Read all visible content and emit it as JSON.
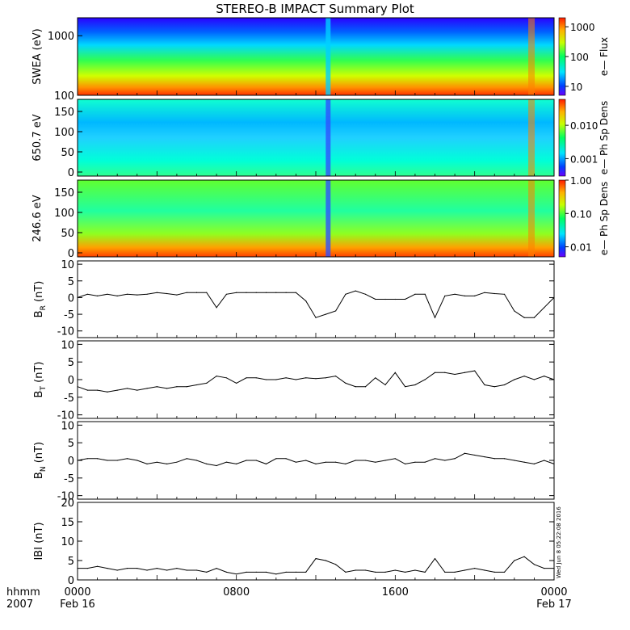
{
  "title": "STEREO-B IMPACT Summary Plot",
  "stamp": "Wed Jun  8 05:22:08 2016",
  "time_axis": {
    "range_hours": [
      0,
      24
    ],
    "ticks": [
      {
        "hour": 0,
        "line1": "0000",
        "line2": "Feb 16"
      },
      {
        "hour": 8,
        "line1": "0800",
        "line2": ""
      },
      {
        "hour": 16,
        "line1": "1600",
        "line2": ""
      },
      {
        "hour": 24,
        "line1": "0000",
        "line2": "Feb 17"
      }
    ],
    "corner_line1": "hhmm",
    "corner_line2": "2007"
  },
  "spectrograms": [
    {
      "ylabel": "SWEA (eV)",
      "yscale": "log",
      "ylim": [
        100,
        2000
      ],
      "yticks": [
        {
          "value": 100,
          "label": "100"
        },
        {
          "value": 1000,
          "label": "1000"
        }
      ],
      "colorbar_label": "e— Flux",
      "colorbar_scale": "log",
      "colorbar_range": [
        5,
        2000
      ],
      "colorbar_ticks": [
        {
          "value": 10,
          "label": "10"
        },
        {
          "value": 100,
          "label": "100"
        },
        {
          "value": 1000,
          "label": "1000"
        }
      ]
    },
    {
      "ylabel": "650.7 eV",
      "yscale": "linear",
      "ylim": [
        -10,
        180
      ],
      "yticks": [
        {
          "value": 0,
          "label": "0"
        },
        {
          "value": 50,
          "label": "50"
        },
        {
          "value": 100,
          "label": "100"
        },
        {
          "value": 150,
          "label": "150"
        }
      ],
      "colorbar_label": "e— Ph Sp Dens",
      "colorbar_scale": "log",
      "colorbar_range": [
        0.0003,
        0.06
      ],
      "colorbar_ticks": [
        {
          "value": 0.001,
          "label": "0.001"
        },
        {
          "value": 0.01,
          "label": "0.010"
        }
      ]
    },
    {
      "ylabel": "246.6 eV",
      "yscale": "linear",
      "ylim": [
        -10,
        180
      ],
      "yticks": [
        {
          "value": 0,
          "label": "0"
        },
        {
          "value": 50,
          "label": "50"
        },
        {
          "value": 100,
          "label": "100"
        },
        {
          "value": 150,
          "label": "150"
        }
      ],
      "colorbar_label": "e— Ph Sp Dens",
      "colorbar_scale": "log",
      "colorbar_range": [
        0.005,
        1.0
      ],
      "colorbar_ticks": [
        {
          "value": 0.01,
          "label": "0.01"
        },
        {
          "value": 0.1,
          "label": "0.10"
        },
        {
          "value": 1.0,
          "label": "1.00"
        }
      ]
    }
  ],
  "chart_data": [
    {
      "type": "line",
      "ylabel_main": "B",
      "ylabel_sub": "R",
      "ylabel_unit": " (nT)",
      "ylim": [
        -12,
        11
      ],
      "yticks": [
        -10,
        -5,
        0,
        5,
        10
      ],
      "x": [
        0,
        0.5,
        1,
        1.5,
        2,
        2.5,
        3,
        3.5,
        4,
        4.5,
        5,
        5.5,
        6,
        6.5,
        7,
        7.5,
        8,
        8.5,
        9,
        9.5,
        10,
        10.5,
        11,
        11.5,
        12,
        12.5,
        13,
        13.5,
        14,
        14.5,
        15,
        15.5,
        16,
        16.5,
        17,
        17.5,
        18,
        18.5,
        19,
        19.5,
        20,
        20.5,
        21,
        21.5,
        22,
        22.5,
        23,
        23.5,
        24
      ],
      "y": [
        0,
        1,
        0.5,
        1,
        0.5,
        1,
        0.8,
        1,
        1.5,
        1.2,
        0.8,
        1.5,
        1.5,
        1.5,
        -3,
        1,
        1.5,
        1.5,
        1.5,
        1.5,
        1.5,
        1.5,
        1.5,
        -1,
        -6,
        -5,
        -4,
        1,
        2,
        1,
        -0.5,
        -0.5,
        -0.5,
        -0.5,
        1,
        1,
        -6,
        0.5,
        1,
        0.5,
        0.5,
        1.5,
        1.2,
        1,
        -4,
        -6,
        -6,
        -3,
        0
      ]
    },
    {
      "type": "line",
      "ylabel_main": "B",
      "ylabel_sub": "T",
      "ylabel_unit": " (nT)",
      "ylim": [
        -11,
        11
      ],
      "yticks": [
        -10,
        -5,
        0,
        5,
        10
      ],
      "x": [
        0,
        0.5,
        1,
        1.5,
        2,
        2.5,
        3,
        3.5,
        4,
        4.5,
        5,
        5.5,
        6,
        6.5,
        7,
        7.5,
        8,
        8.5,
        9,
        9.5,
        10,
        10.5,
        11,
        11.5,
        12,
        12.5,
        13,
        13.5,
        14,
        14.5,
        15,
        15.5,
        16,
        16.5,
        17,
        17.5,
        18,
        18.5,
        19,
        19.5,
        20,
        20.5,
        21,
        21.5,
        22,
        22.5,
        23,
        23.5,
        24
      ],
      "y": [
        -2,
        -3,
        -3,
        -3.5,
        -3,
        -2.5,
        -3,
        -2.5,
        -2,
        -2.5,
        -2,
        -2,
        -1.5,
        -1,
        1,
        0.5,
        -1,
        0.5,
        0.5,
        0,
        0,
        0.5,
        0,
        0.5,
        0.3,
        0.5,
        1,
        -1,
        -2,
        -2,
        0.5,
        -1.5,
        2,
        -2,
        -1.5,
        0,
        2,
        2,
        1.5,
        2,
        2.5,
        -1.5,
        -2,
        -1.5,
        0,
        1,
        0,
        1,
        0
      ]
    },
    {
      "type": "line",
      "ylabel_main": "B",
      "ylabel_sub": "N",
      "ylabel_unit": " (nT)",
      "ylim": [
        -11,
        11
      ],
      "yticks": [
        -10,
        -5,
        0,
        5,
        10
      ],
      "x": [
        0,
        0.5,
        1,
        1.5,
        2,
        2.5,
        3,
        3.5,
        4,
        4.5,
        5,
        5.5,
        6,
        6.5,
        7,
        7.5,
        8,
        8.5,
        9,
        9.5,
        10,
        10.5,
        11,
        11.5,
        12,
        12.5,
        13,
        13.5,
        14,
        14.5,
        15,
        15.5,
        16,
        16.5,
        17,
        17.5,
        18,
        18.5,
        19,
        19.5,
        20,
        20.5,
        21,
        21.5,
        22,
        22.5,
        23,
        23.5,
        24
      ],
      "y": [
        0,
        0.5,
        0.5,
        0,
        0,
        0.5,
        0,
        -1,
        -0.5,
        -1,
        -0.5,
        0.5,
        0,
        -1,
        -1.5,
        -0.5,
        -1,
        0,
        0,
        -1,
        0.5,
        0.5,
        -0.5,
        0,
        -1,
        -0.5,
        -0.5,
        -1,
        0,
        0,
        -0.5,
        0,
        0.5,
        -1,
        -0.5,
        -0.5,
        0.5,
        0,
        0.5,
        2,
        1.5,
        1,
        0.5,
        0.5,
        0,
        -0.5,
        -1,
        0,
        -1
      ]
    },
    {
      "type": "line",
      "ylabel_main": "IBI",
      "ylabel_sub": "",
      "ylabel_unit": " (nT)",
      "ylim": [
        0,
        20
      ],
      "yticks": [
        0,
        5,
        10,
        15,
        20
      ],
      "x": [
        0,
        0.5,
        1,
        1.5,
        2,
        2.5,
        3,
        3.5,
        4,
        4.5,
        5,
        5.5,
        6,
        6.5,
        7,
        7.5,
        8,
        8.5,
        9,
        9.5,
        10,
        10.5,
        11,
        11.5,
        12,
        12.5,
        13,
        13.5,
        14,
        14.5,
        15,
        15.5,
        16,
        16.5,
        17,
        17.5,
        18,
        18.5,
        19,
        19.5,
        20,
        20.5,
        21,
        21.5,
        22,
        22.5,
        23,
        23.5,
        24
      ],
      "y": [
        3,
        3,
        3.5,
        3,
        2.5,
        3,
        3,
        2.5,
        3,
        2.5,
        3,
        2.5,
        2.5,
        2,
        3,
        2,
        1.5,
        2,
        2,
        2,
        1.5,
        2,
        2,
        2,
        5.5,
        5,
        4,
        2,
        2.5,
        2.5,
        2,
        2,
        2.5,
        2,
        2.5,
        2,
        5.5,
        2,
        2,
        2.5,
        3,
        2.5,
        2,
        2,
        5,
        6,
        4,
        3,
        3
      ]
    }
  ]
}
